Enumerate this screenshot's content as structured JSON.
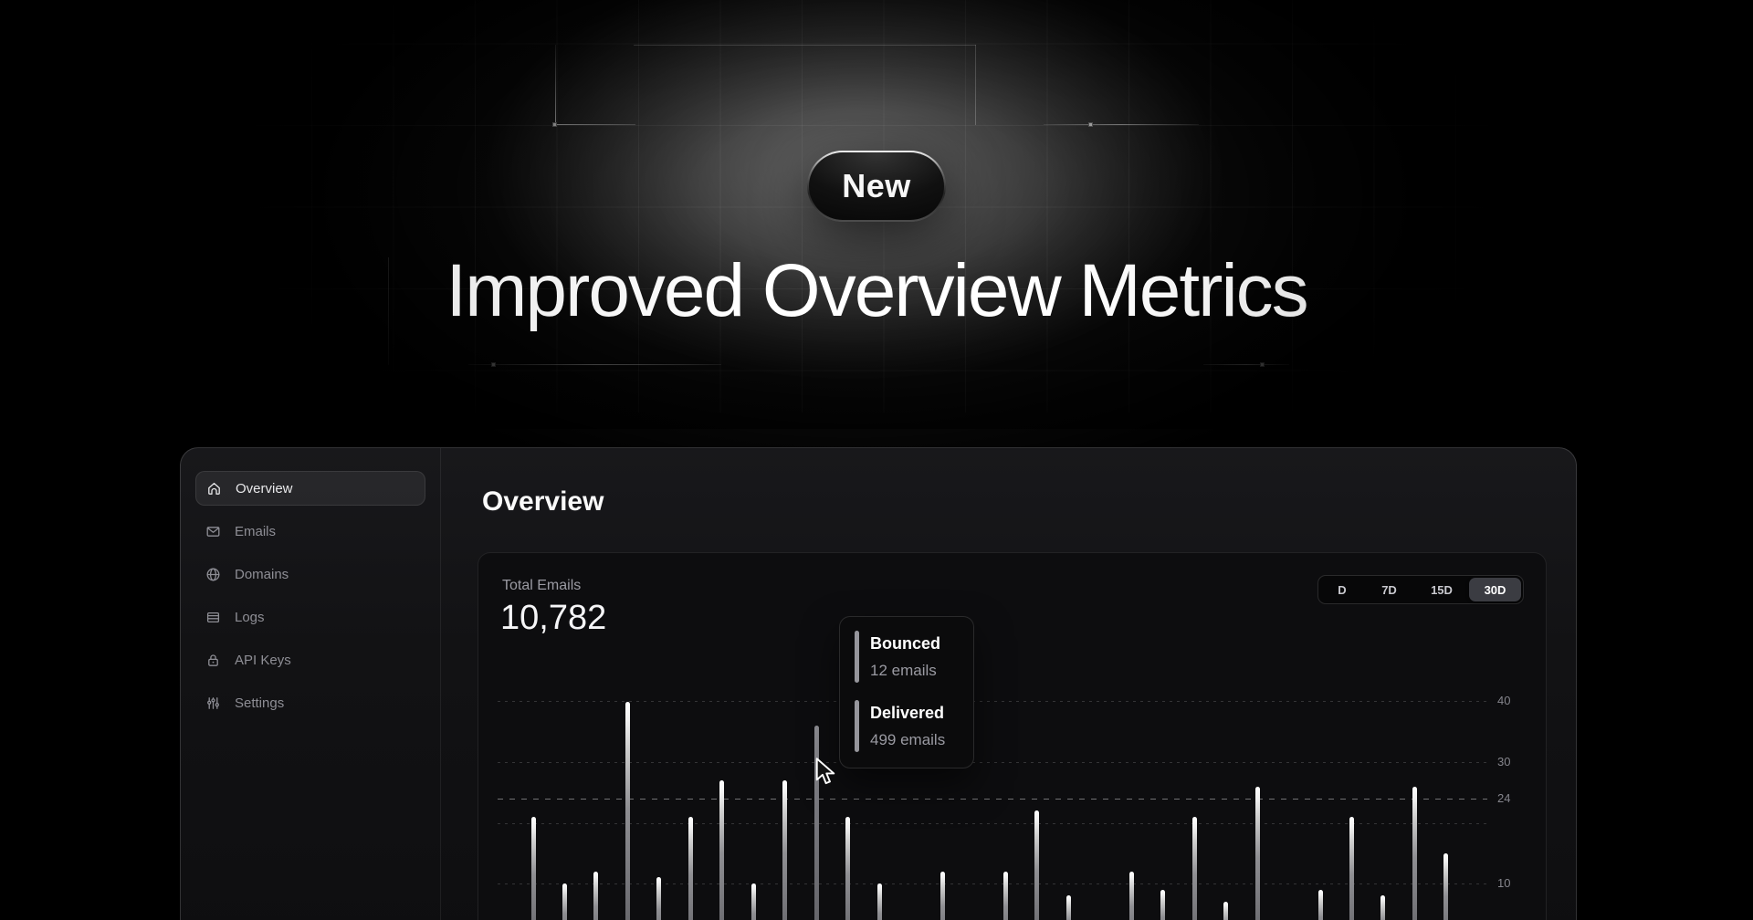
{
  "hero": {
    "badge_label": "New",
    "headline": "Improved Overview Metrics"
  },
  "sidebar": {
    "items": [
      {
        "label": "Overview",
        "icon": "home-icon",
        "active": true
      },
      {
        "label": "Emails",
        "icon": "mail-icon",
        "active": false
      },
      {
        "label": "Domains",
        "icon": "globe-icon",
        "active": false
      },
      {
        "label": "Logs",
        "icon": "logs-icon",
        "active": false
      },
      {
        "label": "API Keys",
        "icon": "lock-icon",
        "active": false
      },
      {
        "label": "Settings",
        "icon": "sliders-icon",
        "active": false
      }
    ]
  },
  "main": {
    "title": "Overview",
    "metric": {
      "label": "Total Emails",
      "value": "10,782"
    },
    "range_options": [
      {
        "label": "D",
        "selected": false
      },
      {
        "label": "7D",
        "selected": false
      },
      {
        "label": "15D",
        "selected": false
      },
      {
        "label": "30D",
        "selected": true
      }
    ],
    "tooltip": {
      "entries": [
        {
          "title": "Bounced",
          "value": "12 emails"
        },
        {
          "title": "Delivered",
          "value": "499 emails"
        }
      ]
    }
  },
  "chart_data": {
    "type": "bar",
    "title": "Total Emails",
    "xlabel": "",
    "ylabel": "",
    "y_ticks": [
      "40",
      "30",
      "24",
      "10"
    ],
    "dashed_gridline_value": 24,
    "grid": "dotted horizontal lines at 40, 30, 24 (dashed), 20, 10; x-axis labels cut off below viewport",
    "legend_position": "none",
    "values": [
      21,
      10,
      12,
      40,
      11,
      21,
      27,
      10,
      27,
      36,
      21,
      10,
      4,
      12,
      4,
      12,
      22,
      8,
      4,
      12,
      9,
      21,
      7,
      26,
      4,
      9,
      21,
      8,
      26,
      15,
      4
    ],
    "hovered_index": 9,
    "hovered_point": {
      "bounced_emails": 12,
      "delivered_emails": 499
    }
  },
  "colors": {
    "background": "#000000",
    "panel_bg": "#131316",
    "card_bg": "#0d0d0f",
    "text_primary": "#ffffff",
    "text_muted": "#8e8e95",
    "bar_top": "#ffffff",
    "bar_bottom": "#5e5e63",
    "selected_segment_bg": "#3b3c42"
  }
}
